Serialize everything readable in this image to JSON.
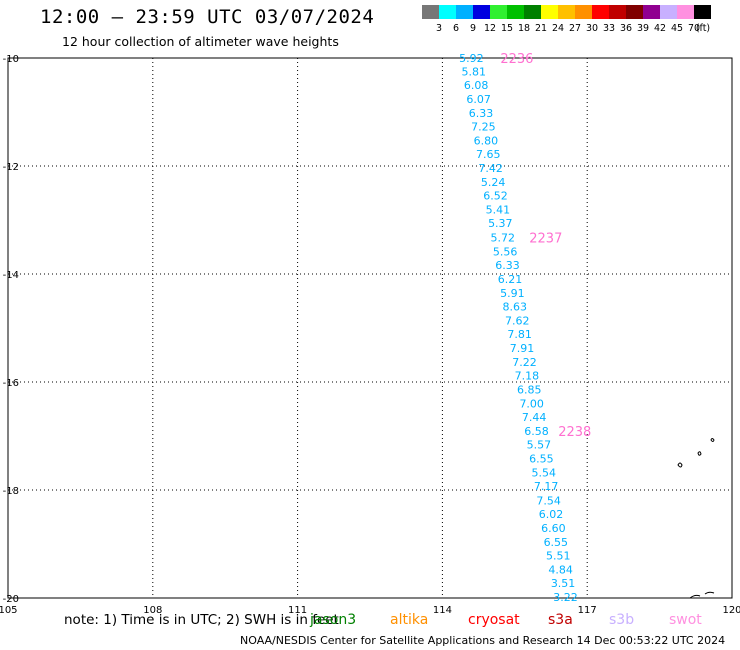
{
  "title": "12:00 – 23:59 UTC 03/07/2024",
  "subtitle": "12 hour collection of altimeter wave heights",
  "legend": {
    "colors": [
      "#777777",
      "#00ffff",
      "#00b0ff",
      "#0000e0",
      "#30f030",
      "#00c000",
      "#008000",
      "#ffff00",
      "#ffc000",
      "#ff9000",
      "#ff0000",
      "#c00000",
      "#800000",
      "#900090",
      "#c8b0ff",
      "#ff90e0",
      "#000000"
    ],
    "labels": [
      "3",
      "6",
      "9",
      "12",
      "15",
      "18",
      "21",
      "24",
      "27",
      "30",
      "33",
      "36",
      "39",
      "42",
      "45",
      "70"
    ],
    "unit": "(ft)"
  },
  "axes": {
    "x_ticks": [
      "105",
      "108",
      "111",
      "114",
      "117",
      "120"
    ],
    "y_ticks": [
      "-10",
      "-12",
      "-14",
      "-16",
      "-18",
      "-20"
    ],
    "lon_range": [
      105,
      120
    ],
    "lat_range": [
      -20,
      -10
    ]
  },
  "chart_data": {
    "type": "scatter",
    "series": [
      {
        "values": [
          {
            "lon": 114.6,
            "lat": -10.0,
            "swh": "5.92",
            "color": "#00b0ff"
          },
          {
            "lon": 114.65,
            "lat": -10.25,
            "swh": "5.81",
            "color": "#00b0ff"
          },
          {
            "lon": 114.7,
            "lat": -10.5,
            "swh": "6.08",
            "color": "#00b0ff"
          },
          {
            "lon": 114.75,
            "lat": -10.76,
            "swh": "6.07",
            "color": "#00b0ff"
          },
          {
            "lon": 114.8,
            "lat": -11.02,
            "swh": "6.33",
            "color": "#00b0ff"
          },
          {
            "lon": 114.85,
            "lat": -11.27,
            "swh": "7.25",
            "color": "#00b0ff"
          },
          {
            "lon": 114.9,
            "lat": -11.53,
            "swh": "6.80",
            "color": "#00b0ff"
          },
          {
            "lon": 114.95,
            "lat": -11.78,
            "swh": "7.65",
            "color": "#00b0ff"
          },
          {
            "lon": 115.0,
            "lat": -12.04,
            "swh": "7.42",
            "color": "#00b0ff"
          },
          {
            "lon": 115.05,
            "lat": -12.3,
            "swh": "5.24",
            "color": "#00b0ff"
          },
          {
            "lon": 115.1,
            "lat": -12.55,
            "swh": "6.52",
            "color": "#00b0ff"
          },
          {
            "lon": 115.15,
            "lat": -12.81,
            "swh": "5.41",
            "color": "#00b0ff"
          },
          {
            "lon": 115.2,
            "lat": -13.06,
            "swh": "5.37",
            "color": "#00b0ff"
          },
          {
            "lon": 115.25,
            "lat": -13.32,
            "swh": "5.72",
            "color": "#00b0ff"
          },
          {
            "lon": 115.3,
            "lat": -13.58,
            "swh": "5.56",
            "color": "#00b0ff"
          },
          {
            "lon": 115.35,
            "lat": -13.83,
            "swh": "6.33",
            "color": "#00b0ff"
          },
          {
            "lon": 115.4,
            "lat": -14.09,
            "swh": "6.21",
            "color": "#00b0ff"
          },
          {
            "lon": 115.45,
            "lat": -14.35,
            "swh": "5.91",
            "color": "#00b0ff"
          },
          {
            "lon": 115.5,
            "lat": -14.6,
            "swh": "8.63",
            "color": "#00b0ff"
          },
          {
            "lon": 115.55,
            "lat": -14.86,
            "swh": "7.62",
            "color": "#00b0ff"
          },
          {
            "lon": 115.6,
            "lat": -15.11,
            "swh": "7.81",
            "color": "#00b0ff"
          },
          {
            "lon": 115.65,
            "lat": -15.37,
            "swh": "7.91",
            "color": "#00b0ff"
          },
          {
            "lon": 115.7,
            "lat": -15.63,
            "swh": "7.22",
            "color": "#00b0ff"
          },
          {
            "lon": 115.75,
            "lat": -15.88,
            "swh": "7.18",
            "color": "#00b0ff"
          },
          {
            "lon": 115.8,
            "lat": -16.14,
            "swh": "6.85",
            "color": "#00b0ff"
          },
          {
            "lon": 115.85,
            "lat": -16.4,
            "swh": "7.00",
            "color": "#00b0ff"
          },
          {
            "lon": 115.9,
            "lat": -16.65,
            "swh": "7.44",
            "color": "#00b0ff"
          },
          {
            "lon": 115.95,
            "lat": -16.91,
            "swh": "6.58",
            "color": "#00b0ff"
          },
          {
            "lon": 116.0,
            "lat": -17.16,
            "swh": "5.57",
            "color": "#00b0ff"
          },
          {
            "lon": 116.05,
            "lat": -17.42,
            "swh": "6.55",
            "color": "#00b0ff"
          },
          {
            "lon": 116.1,
            "lat": -17.68,
            "swh": "5.54",
            "color": "#00b0ff"
          },
          {
            "lon": 116.15,
            "lat": -17.93,
            "swh": "7.17",
            "color": "#00b0ff"
          },
          {
            "lon": 116.2,
            "lat": -18.19,
            "swh": "7.54",
            "color": "#00b0ff"
          },
          {
            "lon": 116.25,
            "lat": -18.44,
            "swh": "6.02",
            "color": "#00b0ff"
          },
          {
            "lon": 116.3,
            "lat": -18.7,
            "swh": "6.60",
            "color": "#00b0ff"
          },
          {
            "lon": 116.35,
            "lat": -18.96,
            "swh": "6.55",
            "color": "#00b0ff"
          },
          {
            "lon": 116.4,
            "lat": -19.21,
            "swh": "5.51",
            "color": "#00b0ff"
          },
          {
            "lon": 116.45,
            "lat": -19.47,
            "swh": "4.84",
            "color": "#00b0ff"
          },
          {
            "lon": 116.5,
            "lat": -19.72,
            "swh": "3.51",
            "color": "#00b0ff"
          },
          {
            "lon": 116.55,
            "lat": -19.98,
            "swh": "3.22",
            "color": "#00b0ff"
          }
        ]
      }
    ],
    "time_labels": [
      {
        "lon": 115.2,
        "lat": -10.0,
        "text": "2236",
        "color": "#ff70d0"
      },
      {
        "lon": 115.8,
        "lat": -13.32,
        "text": "2237",
        "color": "#ff70d0"
      },
      {
        "lon": 116.4,
        "lat": -16.91,
        "text": "2238",
        "color": "#ff70d0"
      }
    ]
  },
  "footer": {
    "note": "note:  1) Time is in UTC; 2) SWH is in feet",
    "satellites": [
      {
        "name": "jason3",
        "color": "#008000"
      },
      {
        "name": "altika",
        "color": "#ff9000"
      },
      {
        "name": "cryosat",
        "color": "#ff0000"
      },
      {
        "name": "s3a",
        "color": "#c00000"
      },
      {
        "name": "s3b",
        "color": "#c8b0ff"
      },
      {
        "name": "swot",
        "color": "#ff90e0"
      }
    ],
    "credit": "NOAA/NESDIS Center for Satellite Applications and Research    14 Dec 00:53:22 UTC 2024"
  }
}
